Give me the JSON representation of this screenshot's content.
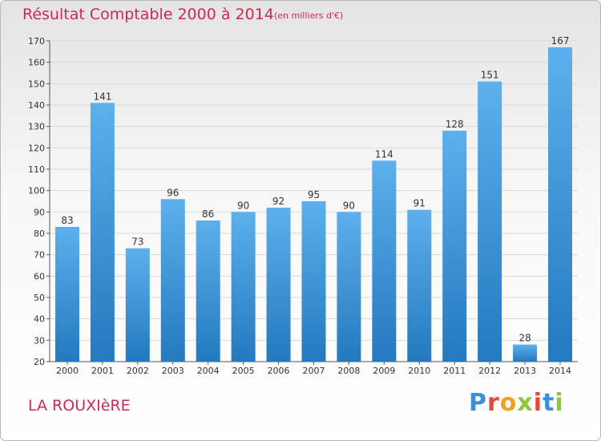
{
  "chart_data": {
    "type": "bar",
    "title": "Résultat Comptable 2000 à 2014",
    "subtitle": "(en milliers d'€)",
    "categories": [
      "2000",
      "2001",
      "2002",
      "2003",
      "2004",
      "2005",
      "2006",
      "2007",
      "2008",
      "2009",
      "2010",
      "2011",
      "2012",
      "2013",
      "2014"
    ],
    "values": [
      83,
      141,
      73,
      96,
      86,
      90,
      92,
      95,
      90,
      114,
      91,
      128,
      151,
      28,
      167
    ],
    "ylim": [
      20,
      170
    ],
    "yticks": [
      20,
      30,
      40,
      50,
      60,
      70,
      80,
      90,
      100,
      110,
      120,
      130,
      140,
      150,
      160,
      170
    ],
    "xlabel": "",
    "ylabel": "",
    "grid": true,
    "bar_color": "#3f97dc"
  },
  "footer": {
    "place": "LA ROUXIèRE",
    "logo": [
      "P",
      "r",
      "o",
      "x",
      "i",
      "t",
      "i"
    ],
    "logo_colors": [
      "#3c8fd8",
      "#e84a3a",
      "#f0a020",
      "#8fc63a",
      "#e84a3a",
      "#3c8fd8",
      "#8fc63a"
    ]
  },
  "colors": {
    "accent": "#cc2a55",
    "axis": "#555555"
  }
}
